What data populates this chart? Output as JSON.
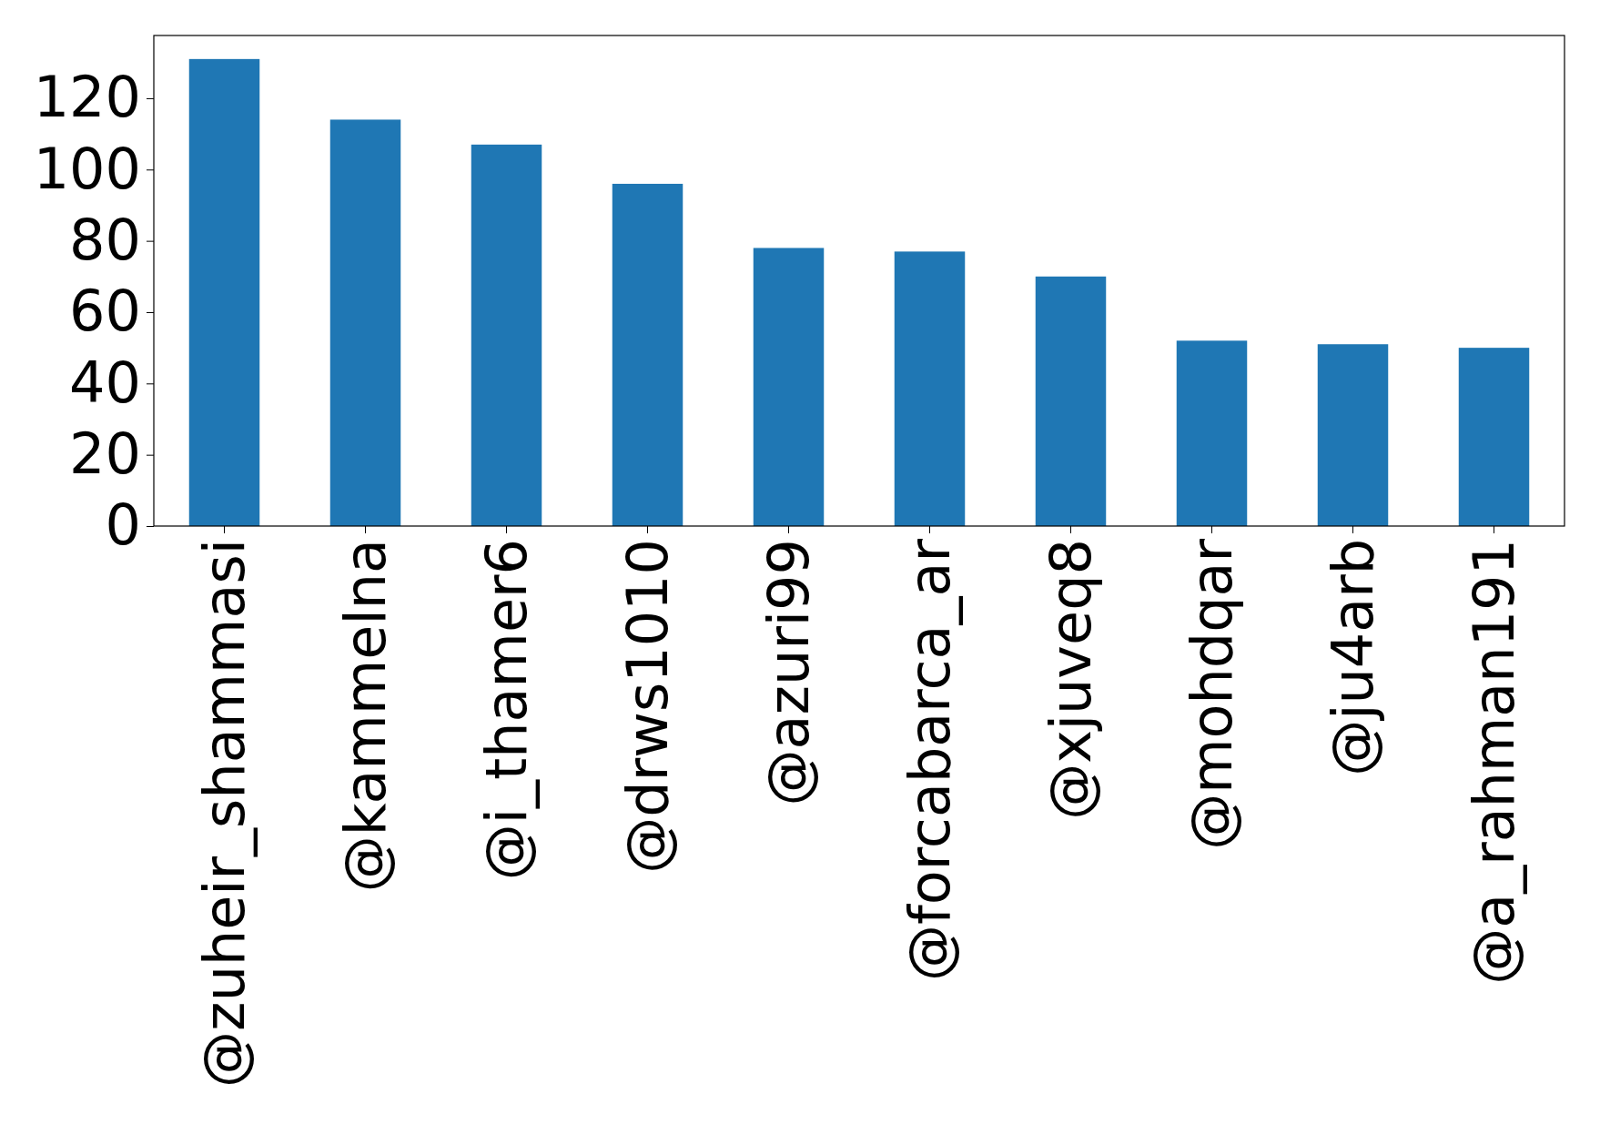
{
  "chart_data": {
    "type": "bar",
    "categories": [
      "@zuheir_shammasi",
      "@kammelna",
      "@i_thamer6",
      "@drws1010",
      "@azuri99",
      "@forcabarca_ar",
      "@xjuveq8",
      "@mohdqar",
      "@ju4arb",
      "@a_rahman191"
    ],
    "values": [
      131,
      114,
      107,
      96,
      78,
      77,
      70,
      52,
      51,
      50
    ],
    "color": "#1f77b4",
    "ylim": [
      0,
      137.6
    ],
    "yticks": [
      0,
      20,
      40,
      60,
      80,
      100,
      120
    ]
  }
}
